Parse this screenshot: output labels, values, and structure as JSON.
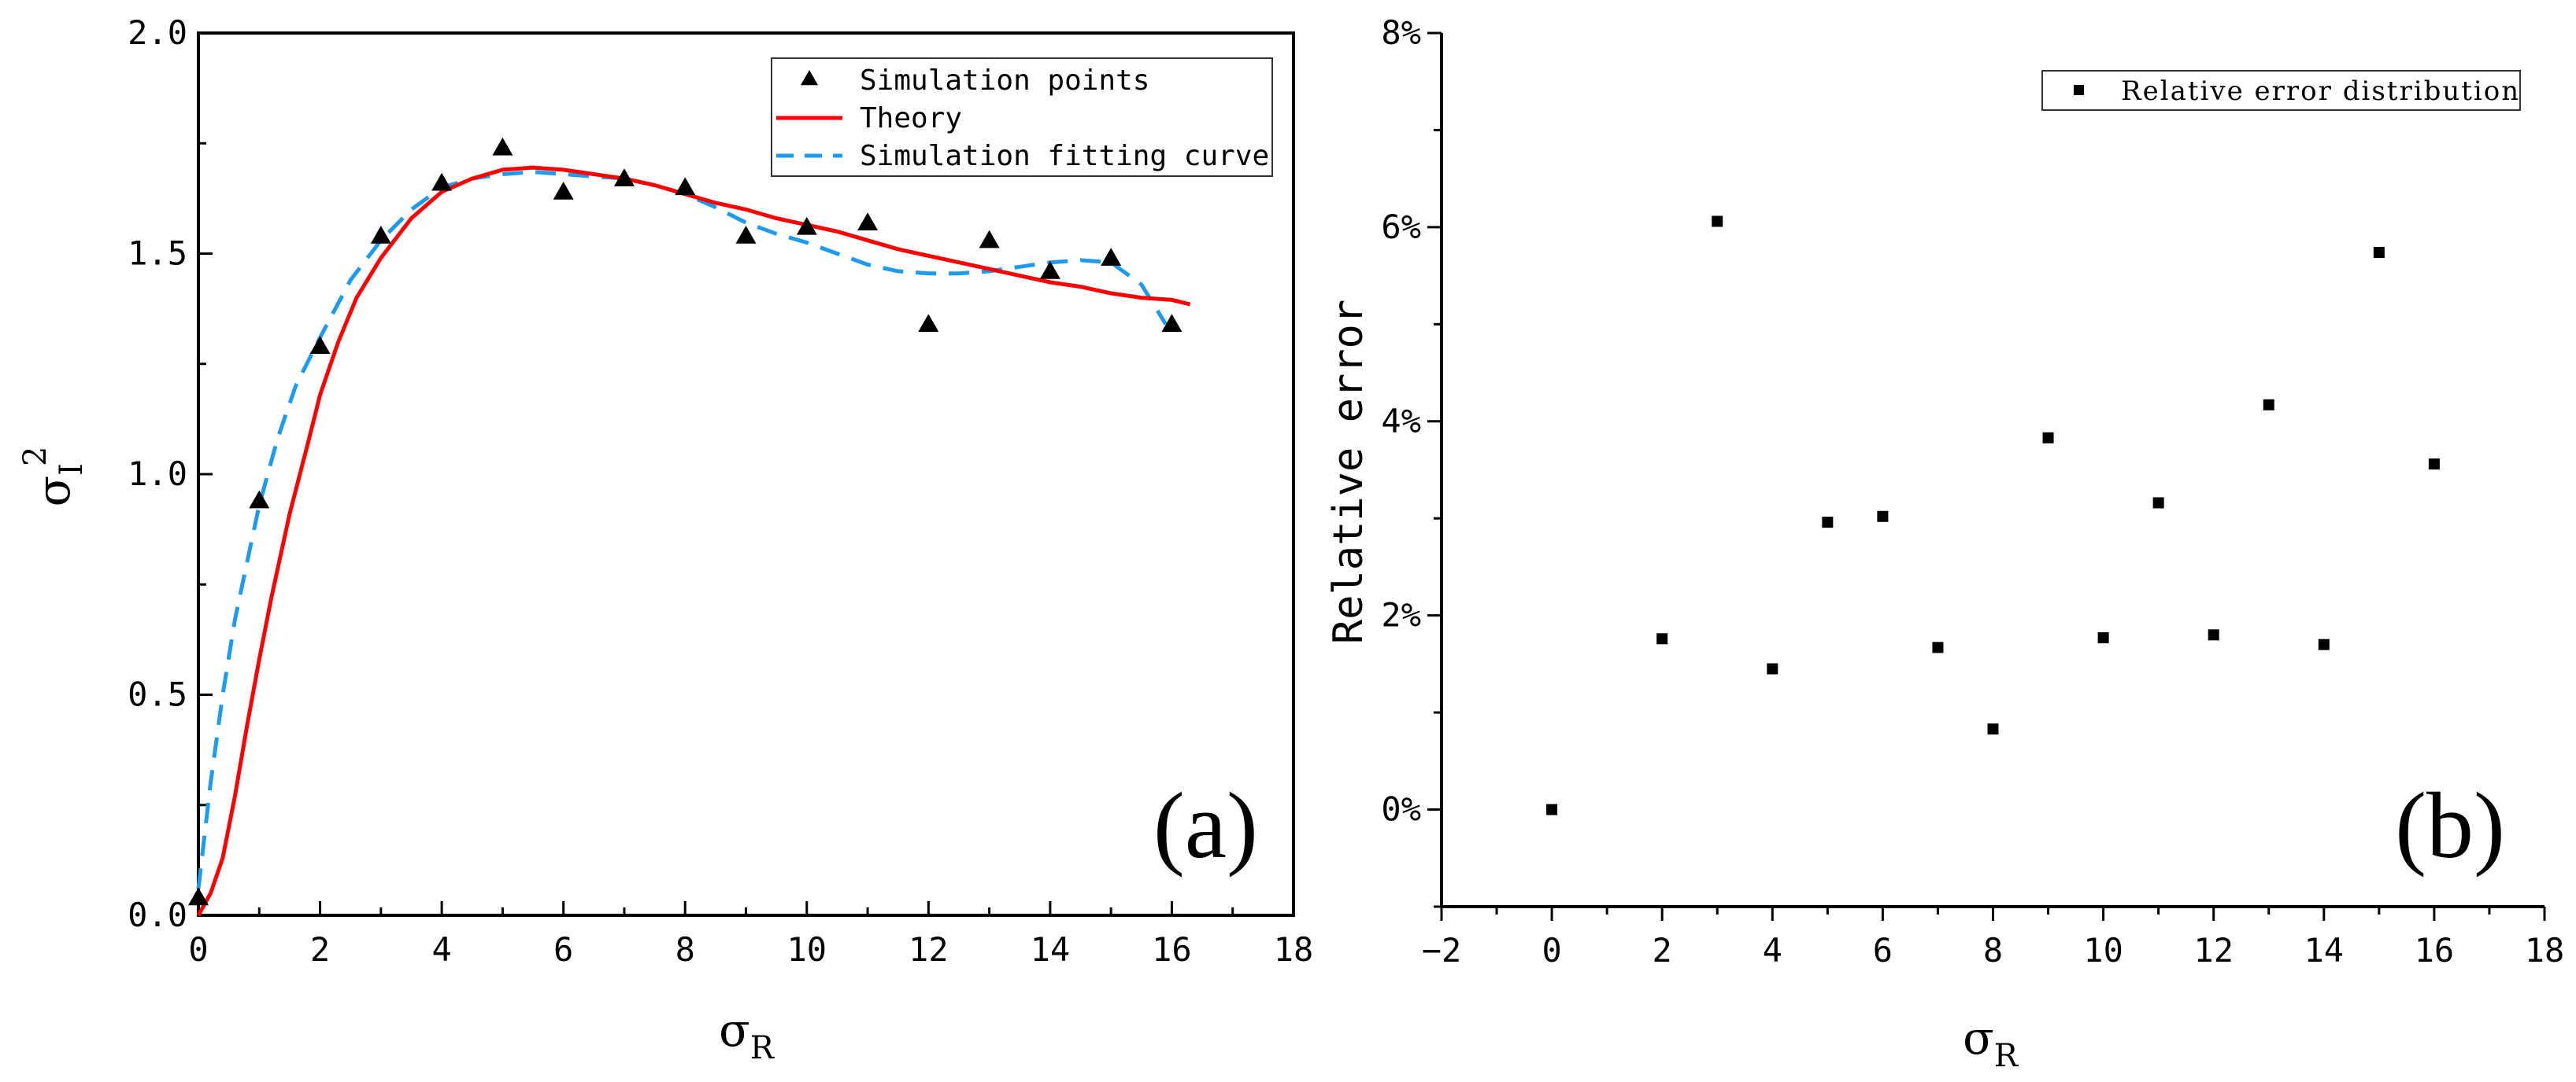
{
  "chart_data": [
    {
      "type": "line",
      "panel": "(a)",
      "xlabel": "σ",
      "xlabel_sub": "R",
      "ylabel": "σ",
      "ylabel_sub": "I",
      "ylabel_sup": "2",
      "xlim": [
        0,
        18
      ],
      "ylim": [
        0,
        2.0
      ],
      "x_major_ticks": [
        0,
        2,
        4,
        6,
        8,
        10,
        12,
        14,
        16,
        18
      ],
      "x_tick_labels": [
        "0",
        "2",
        "4",
        "6",
        "8",
        "10",
        "12",
        "14",
        "16",
        "18"
      ],
      "y_major_ticks": [
        0,
        0.5,
        1.0,
        1.5,
        2.0
      ],
      "y_tick_labels": [
        "0.0",
        "0.5",
        "1.0",
        "1.5",
        "2.0"
      ],
      "legend_position": "top-right",
      "series": [
        {
          "name": "Simulation points",
          "kind": "scatter",
          "marker": "triangle",
          "color": "#000000",
          "x": [
            0,
            1,
            2,
            3,
            4,
            5,
            6,
            7,
            8,
            9,
            10,
            11,
            12,
            13,
            14,
            15,
            16
          ],
          "y": [
            0.04,
            0.94,
            1.29,
            1.54,
            1.66,
            1.74,
            1.64,
            1.67,
            1.65,
            1.54,
            1.56,
            1.57,
            1.34,
            1.53,
            1.46,
            1.49,
            1.34
          ]
        },
        {
          "name": "Theory",
          "kind": "line",
          "style": "solid",
          "color": "#ff0000",
          "x": [
            0,
            0.2,
            0.4,
            0.6,
            0.8,
            1.0,
            1.2,
            1.5,
            1.8,
            2.0,
            2.3,
            2.6,
            3.0,
            3.5,
            4.0,
            4.5,
            5.0,
            5.5,
            6.0,
            6.5,
            7.0,
            7.5,
            8.0,
            8.5,
            9.0,
            9.5,
            10.0,
            10.5,
            11.0,
            11.5,
            12.0,
            12.5,
            13.0,
            13.5,
            14.0,
            14.5,
            15.0,
            15.5,
            16.0,
            16.3
          ],
          "y": [
            0.0,
            0.05,
            0.13,
            0.27,
            0.43,
            0.58,
            0.72,
            0.91,
            1.07,
            1.18,
            1.3,
            1.4,
            1.49,
            1.58,
            1.64,
            1.67,
            1.69,
            1.695,
            1.69,
            1.68,
            1.67,
            1.655,
            1.635,
            1.615,
            1.6,
            1.58,
            1.565,
            1.55,
            1.53,
            1.51,
            1.495,
            1.48,
            1.465,
            1.45,
            1.435,
            1.425,
            1.41,
            1.4,
            1.395,
            1.385
          ]
        },
        {
          "name": "Simulation fitting curve",
          "kind": "line",
          "style": "dashed",
          "color": "#1e9bef",
          "x": [
            0,
            0.2,
            0.4,
            0.6,
            0.8,
            1.0,
            1.3,
            1.6,
            2.0,
            2.5,
            3.0,
            3.5,
            4.0,
            4.5,
            5.0,
            5.5,
            6.0,
            6.5,
            7.0,
            7.5,
            8.0,
            8.5,
            9.0,
            9.5,
            10.0,
            10.5,
            11.0,
            11.5,
            12.0,
            12.5,
            13.0,
            13.5,
            14.0,
            14.5,
            15.0,
            15.5,
            15.9
          ],
          "y": [
            0.06,
            0.3,
            0.5,
            0.67,
            0.8,
            0.93,
            1.08,
            1.2,
            1.31,
            1.44,
            1.53,
            1.6,
            1.65,
            1.67,
            1.68,
            1.685,
            1.68,
            1.675,
            1.67,
            1.655,
            1.635,
            1.605,
            1.57,
            1.545,
            1.525,
            1.5,
            1.475,
            1.46,
            1.455,
            1.455,
            1.46,
            1.47,
            1.48,
            1.485,
            1.48,
            1.43,
            1.34
          ]
        }
      ]
    },
    {
      "type": "scatter",
      "panel": "(b)",
      "xlabel": "σ",
      "xlabel_sub": "R",
      "ylabel": "Relative error",
      "xlim": [
        -2,
        18
      ],
      "ylim": [
        -1,
        8
      ],
      "x_major_ticks": [
        -2,
        0,
        2,
        4,
        6,
        8,
        10,
        12,
        14,
        16,
        18
      ],
      "x_tick_labels": [
        "−2",
        "0",
        "2",
        "4",
        "6",
        "8",
        "10",
        "12",
        "14",
        "16",
        "18"
      ],
      "y_major_ticks": [
        0,
        2,
        4,
        6,
        8
      ],
      "y_tick_labels": [
        "0%",
        "2%",
        "4%",
        "6%",
        "8%"
      ],
      "legend_position": "top-right",
      "series": [
        {
          "name": "Relative error distribution",
          "marker": "square",
          "color": "#000000",
          "x": [
            0,
            2,
            3,
            4,
            5,
            6,
            7,
            8,
            9,
            10,
            11,
            12,
            13,
            14,
            15,
            16
          ],
          "y": [
            0.0,
            1.76,
            6.06,
            1.45,
            2.96,
            3.02,
            1.67,
            0.83,
            3.83,
            1.77,
            3.16,
            1.8,
            4.17,
            1.7,
            5.74,
            3.56
          ]
        }
      ]
    }
  ]
}
